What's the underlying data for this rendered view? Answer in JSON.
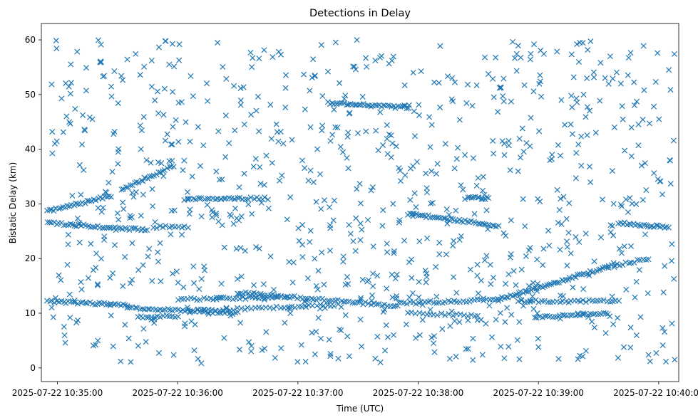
{
  "chart_data": {
    "type": "scatter",
    "title": "Detections in Delay",
    "xlabel": "Time (UTC)",
    "ylabel": "Bistatic Delay (km)",
    "marker": "x",
    "color": "#1f77b4",
    "x_range": [
      "2025-07-22 10:34:52",
      "2025-07-22 10:40:10"
    ],
    "ylim": [
      -2.5,
      63
    ],
    "x_ticks": [
      "2025-07-22 10:35:00",
      "2025-07-22 10:36:00",
      "2025-07-22 10:37:00",
      "2025-07-22 10:38:00",
      "2025-07-22 10:39:00",
      "2025-07-22 10:40:00"
    ],
    "y_ticks": [
      0,
      10,
      20,
      30,
      40,
      50,
      60
    ],
    "tracks": [
      {
        "x_start": "2025-07-22 10:34:55",
        "x_end": "2025-07-22 10:35:27",
        "y_start": 28.6,
        "y_end": 31.5,
        "count": 30
      },
      {
        "x_start": "2025-07-22 10:35:32",
        "x_end": "2025-07-22 10:35:58",
        "y_start": 32.5,
        "y_end": 37.0,
        "count": 25
      },
      {
        "x_start": "2025-07-22 10:34:55",
        "x_end": "2025-07-22 10:35:45",
        "y_start": 26.5,
        "y_end": 25.2,
        "count": 45
      },
      {
        "x_start": "2025-07-22 10:34:55",
        "x_end": "2025-07-22 10:35:35",
        "y_start": 12.2,
        "y_end": 11.5,
        "count": 35
      },
      {
        "x_start": "2025-07-22 10:35:35",
        "x_end": "2025-07-22 10:36:30",
        "y_start": 11.0,
        "y_end": 10.0,
        "count": 45
      },
      {
        "x_start": "2025-07-22 10:35:48",
        "x_end": "2025-07-22 10:36:05",
        "y_start": 25.8,
        "y_end": 25.8,
        "count": 12
      },
      {
        "x_start": "2025-07-22 10:36:05",
        "x_end": "2025-07-22 10:36:45",
        "y_start": 31.0,
        "y_end": 31.0,
        "count": 30
      },
      {
        "x_start": "2025-07-22 10:36:00",
        "x_end": "2025-07-22 10:36:55",
        "y_start": 12.5,
        "y_end": 13.0,
        "count": 35
      },
      {
        "x_start": "2025-07-22 10:36:10",
        "x_end": "2025-07-22 10:37:20",
        "y_start": 10.5,
        "y_end": 11.5,
        "count": 40
      },
      {
        "x_start": "2025-07-22 10:36:30",
        "x_end": "2025-07-22 10:37:50",
        "y_start": 13.8,
        "y_end": 11.3,
        "count": 60
      },
      {
        "x_start": "2025-07-22 10:37:15",
        "x_end": "2025-07-22 10:37:55",
        "y_start": 48.5,
        "y_end": 47.6,
        "count": 40
      },
      {
        "x_start": "2025-07-22 10:37:50",
        "x_end": "2025-07-22 10:38:40",
        "y_start": 11.8,
        "y_end": 12.5,
        "count": 35
      },
      {
        "x_start": "2025-07-22 10:38:40",
        "x_end": "2025-07-22 10:39:35",
        "y_start": 12.5,
        "y_end": 18.5,
        "count": 55
      },
      {
        "x_start": "2025-07-22 10:39:35",
        "x_end": "2025-07-22 10:39:55",
        "y_start": 18.5,
        "y_end": 20.0,
        "count": 15
      },
      {
        "x_start": "2025-07-22 10:37:55",
        "x_end": "2025-07-22 10:38:40",
        "y_start": 28.2,
        "y_end": 26.0,
        "count": 45
      },
      {
        "x_start": "2025-07-22 10:38:25",
        "x_end": "2025-07-22 10:38:35",
        "y_start": 31.2,
        "y_end": 31.0,
        "count": 12
      },
      {
        "x_start": "2025-07-22 10:38:50",
        "x_end": "2025-07-22 10:39:40",
        "y_start": 12.2,
        "y_end": 12.2,
        "count": 35
      },
      {
        "x_start": "2025-07-22 10:38:58",
        "x_end": "2025-07-22 10:39:35",
        "y_start": 9.2,
        "y_end": 10.0,
        "count": 30
      },
      {
        "x_start": "2025-07-22 10:39:40",
        "x_end": "2025-07-22 10:40:05",
        "y_start": 26.5,
        "y_end": 25.7,
        "count": 25
      },
      {
        "x_start": "2025-07-22 10:37:55",
        "x_end": "2025-07-22 10:38:30",
        "y_start": 10.0,
        "y_end": 9.5,
        "count": 20
      },
      {
        "x_start": "2025-07-22 10:35:40",
        "x_end": "2025-07-22 10:36:00",
        "y_start": 9.3,
        "y_end": 9.5,
        "count": 15
      }
    ],
    "scatter_seed": 7,
    "scatter_count": 900
  }
}
